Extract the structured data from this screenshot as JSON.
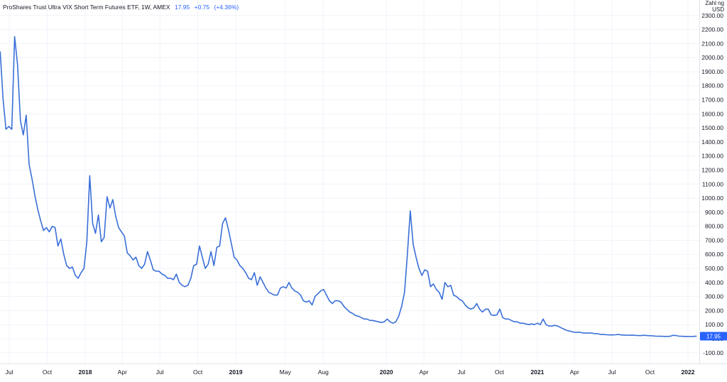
{
  "header": {
    "symbol": "ProShares Trust Ultra VIX Short Term Futures ETF",
    "interval": "1W",
    "exchange": "AMEX",
    "last_price": "17.95",
    "change": "+0.75",
    "change_pct": "(+4.36%)"
  },
  "price_axis_label": {
    "line1": "Zahl ng",
    "line2": "USD"
  },
  "colors": {
    "line": "#3a6fd8",
    "grid": "#f0f3fa",
    "text": "#131722",
    "accent": "#2962ff"
  },
  "chart_data": {
    "type": "line",
    "title": "ProShares Trust Ultra VIX Short Term Futures ETF, 1W, AMEX",
    "xlabel": "",
    "ylabel": "",
    "ylim": [
      -150,
      2400
    ],
    "grid": true,
    "y_ticks": [
      "2300.00",
      "2200.00",
      "2100.00",
      "2000.00",
      "1900.00",
      "1800.00",
      "1700.00",
      "1600.00",
      "1500.00",
      "1400.00",
      "1300.00",
      "1200.00",
      "1100.00",
      "1000.00",
      "900.00",
      "800.00",
      "700.00",
      "600.00",
      "500.00",
      "400.00",
      "300.00",
      "200.00",
      "100.00",
      "0.00",
      "-100.00"
    ],
    "x_ticks": [
      {
        "label": "Jul",
        "bold": false,
        "x": "2017-07-01"
      },
      {
        "label": "Oct",
        "bold": false,
        "x": "2017-10-01"
      },
      {
        "label": "2018",
        "bold": true,
        "x": "2018-01-01"
      },
      {
        "label": "Apr",
        "bold": false,
        "x": "2018-04-01"
      },
      {
        "label": "Jul",
        "bold": false,
        "x": "2018-07-01"
      },
      {
        "label": "Oct",
        "bold": false,
        "x": "2018-10-01"
      },
      {
        "label": "2019",
        "bold": true,
        "x": "2019-01-01"
      },
      {
        "label": "May",
        "bold": false,
        "x": "2019-05-01"
      },
      {
        "label": "Aug",
        "bold": false,
        "x": "2019-08-01"
      },
      {
        "label": "2020",
        "bold": true,
        "x": "2020-01-01"
      },
      {
        "label": "Apr",
        "bold": false,
        "x": "2020-04-01"
      },
      {
        "label": "Jul",
        "bold": false,
        "x": "2020-07-01"
      },
      {
        "label": "Oct",
        "bold": false,
        "x": "2020-10-01"
      },
      {
        "label": "2021",
        "bold": true,
        "x": "2021-01-01"
      },
      {
        "label": "Apr",
        "bold": false,
        "x": "2021-04-01"
      },
      {
        "label": "Jul",
        "bold": false,
        "x": "2021-07-01"
      },
      {
        "label": "Oct",
        "bold": false,
        "x": "2021-10-01"
      },
      {
        "label": "2022",
        "bold": true,
        "x": "2022-01-01"
      }
    ],
    "series": [
      {
        "points": [
          [
            "2017-05-19",
            2060
          ],
          [
            "2017-05-26",
            1890
          ],
          [
            "2017-06-02",
            1960
          ],
          [
            "2017-06-09",
            2040
          ],
          [
            "2017-06-16",
            1700
          ],
          [
            "2017-06-23",
            1490
          ],
          [
            "2017-06-30",
            1510
          ],
          [
            "2017-07-07",
            1490
          ],
          [
            "2017-07-14",
            2150
          ],
          [
            "2017-07-21",
            1950
          ],
          [
            "2017-07-28",
            1550
          ],
          [
            "2017-08-04",
            1450
          ],
          [
            "2017-08-11",
            1590
          ],
          [
            "2017-08-18",
            1240
          ],
          [
            "2017-08-25",
            1140
          ],
          [
            "2017-09-01",
            1020
          ],
          [
            "2017-09-08",
            920
          ],
          [
            "2017-09-15",
            840
          ],
          [
            "2017-09-22",
            770
          ],
          [
            "2017-09-29",
            790
          ],
          [
            "2017-10-06",
            760
          ],
          [
            "2017-10-13",
            800
          ],
          [
            "2017-10-20",
            790
          ],
          [
            "2017-10-27",
            660
          ],
          [
            "2017-11-03",
            710
          ],
          [
            "2017-11-10",
            600
          ],
          [
            "2017-11-17",
            520
          ],
          [
            "2017-11-24",
            500
          ],
          [
            "2017-12-01",
            510
          ],
          [
            "2017-12-08",
            450
          ],
          [
            "2017-12-15",
            430
          ],
          [
            "2017-12-22",
            470
          ],
          [
            "2017-12-29",
            500
          ],
          [
            "2018-01-05",
            690
          ],
          [
            "2018-01-12",
            1160
          ],
          [
            "2018-01-19",
            820
          ],
          [
            "2018-01-26",
            750
          ],
          [
            "2018-02-02",
            880
          ],
          [
            "2018-02-09",
            690
          ],
          [
            "2018-02-16",
            720
          ],
          [
            "2018-02-23",
            1010
          ],
          [
            "2018-03-02",
            930
          ],
          [
            "2018-03-09",
            990
          ],
          [
            "2018-03-16",
            870
          ],
          [
            "2018-03-23",
            790
          ],
          [
            "2018-03-30",
            760
          ],
          [
            "2018-04-06",
            730
          ],
          [
            "2018-04-13",
            610
          ],
          [
            "2018-04-20",
            590
          ],
          [
            "2018-04-27",
            560
          ],
          [
            "2018-05-04",
            580
          ],
          [
            "2018-05-11",
            520
          ],
          [
            "2018-05-18",
            500
          ],
          [
            "2018-05-25",
            530
          ],
          [
            "2018-06-01",
            620
          ],
          [
            "2018-06-08",
            560
          ],
          [
            "2018-06-15",
            490
          ],
          [
            "2018-06-22",
            480
          ],
          [
            "2018-06-29",
            480
          ],
          [
            "2018-07-06",
            460
          ],
          [
            "2018-07-13",
            450
          ],
          [
            "2018-07-20",
            430
          ],
          [
            "2018-07-27",
            430
          ],
          [
            "2018-08-03",
            420
          ],
          [
            "2018-08-10",
            460
          ],
          [
            "2018-08-17",
            400
          ],
          [
            "2018-08-24",
            380
          ],
          [
            "2018-08-31",
            370
          ],
          [
            "2018-09-07",
            380
          ],
          [
            "2018-09-14",
            430
          ],
          [
            "2018-09-21",
            520
          ],
          [
            "2018-09-28",
            530
          ],
          [
            "2018-10-05",
            660
          ],
          [
            "2018-10-12",
            580
          ],
          [
            "2018-10-19",
            500
          ],
          [
            "2018-10-26",
            530
          ],
          [
            "2018-11-02",
            620
          ],
          [
            "2018-11-09",
            520
          ],
          [
            "2018-11-16",
            650
          ],
          [
            "2018-11-23",
            660
          ],
          [
            "2018-11-30",
            820
          ],
          [
            "2018-12-07",
            860
          ],
          [
            "2018-12-14",
            780
          ],
          [
            "2018-12-21",
            680
          ],
          [
            "2018-12-28",
            580
          ],
          [
            "2019-01-04",
            560
          ],
          [
            "2019-01-11",
            520
          ],
          [
            "2019-01-18",
            500
          ],
          [
            "2019-01-25",
            470
          ],
          [
            "2019-02-01",
            430
          ],
          [
            "2019-02-08",
            420
          ],
          [
            "2019-02-15",
            470
          ],
          [
            "2019-02-22",
            380
          ],
          [
            "2019-03-01",
            440
          ],
          [
            "2019-03-08",
            400
          ],
          [
            "2019-03-15",
            360
          ],
          [
            "2019-03-22",
            330
          ],
          [
            "2019-03-29",
            320
          ],
          [
            "2019-04-05",
            310
          ],
          [
            "2019-04-12",
            310
          ],
          [
            "2019-04-19",
            360
          ],
          [
            "2019-04-26",
            370
          ],
          [
            "2019-05-03",
            360
          ],
          [
            "2019-05-10",
            400
          ],
          [
            "2019-05-17",
            360
          ],
          [
            "2019-05-24",
            340
          ],
          [
            "2019-05-31",
            330
          ],
          [
            "2019-06-07",
            310
          ],
          [
            "2019-06-14",
            270
          ],
          [
            "2019-06-21",
            260
          ],
          [
            "2019-06-28",
            270
          ],
          [
            "2019-07-05",
            240
          ],
          [
            "2019-07-12",
            300
          ],
          [
            "2019-07-19",
            320
          ],
          [
            "2019-07-26",
            340
          ],
          [
            "2019-08-02",
            350
          ],
          [
            "2019-08-09",
            310
          ],
          [
            "2019-08-16",
            270
          ],
          [
            "2019-08-23",
            250
          ],
          [
            "2019-08-30",
            270
          ],
          [
            "2019-09-06",
            270
          ],
          [
            "2019-09-13",
            260
          ],
          [
            "2019-09-20",
            230
          ],
          [
            "2019-09-27",
            210
          ],
          [
            "2019-10-04",
            190
          ],
          [
            "2019-10-11",
            180
          ],
          [
            "2019-10-18",
            165
          ],
          [
            "2019-10-25",
            160
          ],
          [
            "2019-11-01",
            150
          ],
          [
            "2019-11-08",
            140
          ],
          [
            "2019-11-15",
            140
          ],
          [
            "2019-11-22",
            130
          ],
          [
            "2019-11-29",
            130
          ],
          [
            "2019-12-06",
            125
          ],
          [
            "2019-12-13",
            120
          ],
          [
            "2019-12-20",
            115
          ],
          [
            "2019-12-27",
            120
          ],
          [
            "2020-01-03",
            140
          ],
          [
            "2020-01-10",
            120
          ],
          [
            "2020-01-17",
            110
          ],
          [
            "2020-01-24",
            120
          ],
          [
            "2020-01-31",
            160
          ],
          [
            "2020-02-07",
            230
          ],
          [
            "2020-02-14",
            330
          ],
          [
            "2020-02-21",
            600
          ],
          [
            "2020-02-28",
            910
          ],
          [
            "2020-03-06",
            670
          ],
          [
            "2020-03-13",
            580
          ],
          [
            "2020-03-20",
            500
          ],
          [
            "2020-03-27",
            450
          ],
          [
            "2020-04-03",
            490
          ],
          [
            "2020-04-10",
            480
          ],
          [
            "2020-04-17",
            370
          ],
          [
            "2020-04-24",
            390
          ],
          [
            "2020-05-01",
            350
          ],
          [
            "2020-05-08",
            330
          ],
          [
            "2020-05-15",
            280
          ],
          [
            "2020-05-22",
            400
          ],
          [
            "2020-05-29",
            370
          ],
          [
            "2020-06-05",
            380
          ],
          [
            "2020-06-12",
            310
          ],
          [
            "2020-06-19",
            300
          ],
          [
            "2020-06-26",
            280
          ],
          [
            "2020-07-03",
            270
          ],
          [
            "2020-07-10",
            240
          ],
          [
            "2020-07-17",
            220
          ],
          [
            "2020-07-24",
            210
          ],
          [
            "2020-07-31",
            220
          ],
          [
            "2020-08-07",
            250
          ],
          [
            "2020-08-14",
            210
          ],
          [
            "2020-08-21",
            190
          ],
          [
            "2020-08-28",
            210
          ],
          [
            "2020-09-04",
            210
          ],
          [
            "2020-09-11",
            170
          ],
          [
            "2020-09-18",
            165
          ],
          [
            "2020-09-25",
            170
          ],
          [
            "2020-10-02",
            210
          ],
          [
            "2020-10-09",
            150
          ],
          [
            "2020-10-16",
            140
          ],
          [
            "2020-10-23",
            140
          ],
          [
            "2020-10-30",
            130
          ],
          [
            "2020-11-06",
            120
          ],
          [
            "2020-11-13",
            120
          ],
          [
            "2020-11-20",
            110
          ],
          [
            "2020-11-27",
            110
          ],
          [
            "2020-12-04",
            105
          ],
          [
            "2020-12-11",
            100
          ],
          [
            "2020-12-18",
            105
          ],
          [
            "2020-12-25",
            100
          ],
          [
            "2021-01-01",
            110
          ],
          [
            "2021-01-08",
            100
          ],
          [
            "2021-01-15",
            140
          ],
          [
            "2021-01-22",
            100
          ],
          [
            "2021-01-29",
            90
          ],
          [
            "2021-02-05",
            90
          ],
          [
            "2021-02-12",
            95
          ],
          [
            "2021-02-19",
            90
          ],
          [
            "2021-02-26",
            80
          ],
          [
            "2021-03-05",
            70
          ],
          [
            "2021-03-12",
            60
          ],
          [
            "2021-03-19",
            55
          ],
          [
            "2021-03-26",
            50
          ],
          [
            "2021-04-02",
            45
          ],
          [
            "2021-04-09",
            45
          ],
          [
            "2021-04-16",
            45
          ],
          [
            "2021-04-23",
            40
          ],
          [
            "2021-04-30",
            40
          ],
          [
            "2021-05-07",
            40
          ],
          [
            "2021-05-14",
            40
          ],
          [
            "2021-05-21",
            35
          ],
          [
            "2021-05-28",
            35
          ],
          [
            "2021-06-04",
            30
          ],
          [
            "2021-06-11",
            30
          ],
          [
            "2021-06-18",
            28
          ],
          [
            "2021-06-25",
            27
          ],
          [
            "2021-07-02",
            27
          ],
          [
            "2021-07-09",
            28
          ],
          [
            "2021-07-16",
            30
          ],
          [
            "2021-07-23",
            27
          ],
          [
            "2021-07-30",
            26
          ],
          [
            "2021-08-06",
            25
          ],
          [
            "2021-08-13",
            24
          ],
          [
            "2021-08-20",
            26
          ],
          [
            "2021-08-27",
            23
          ],
          [
            "2021-09-03",
            22
          ],
          [
            "2021-09-10",
            22
          ],
          [
            "2021-09-17",
            24
          ],
          [
            "2021-09-24",
            22
          ],
          [
            "2021-10-01",
            21
          ],
          [
            "2021-10-08",
            20
          ],
          [
            "2021-10-15",
            18
          ],
          [
            "2021-10-22",
            17
          ],
          [
            "2021-10-29",
            17
          ],
          [
            "2021-11-05",
            16
          ],
          [
            "2021-11-12",
            16
          ],
          [
            "2021-11-19",
            17
          ],
          [
            "2021-11-26",
            24
          ],
          [
            "2021-12-03",
            22
          ],
          [
            "2021-12-10",
            18
          ],
          [
            "2021-12-17",
            17
          ],
          [
            "2021-12-24",
            16
          ],
          [
            "2021-12-31",
            16
          ],
          [
            "2022-01-07",
            15
          ],
          [
            "2022-01-14",
            16
          ],
          [
            "2022-01-21",
            17.95
          ]
        ]
      }
    ]
  }
}
